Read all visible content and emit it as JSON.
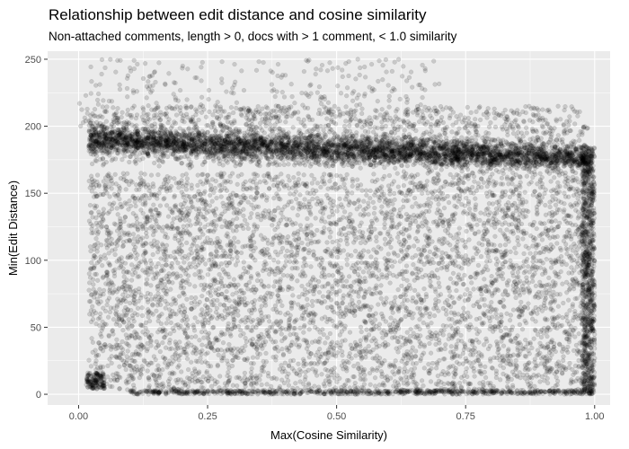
{
  "chart_data": {
    "type": "scatter",
    "title": "Relationship between edit distance and cosine similarity",
    "subtitle": "Non-attached comments, length > 0, docs with > 1 comment, < 1.0 similarity",
    "xlabel": "Max(Cosine Similarity)",
    "ylabel": "Min(Edit Distance)",
    "xlim": [
      -0.06,
      1.03
    ],
    "ylim": [
      -8,
      256
    ],
    "x_ticks": [
      0.0,
      0.25,
      0.5,
      0.75,
      1.0
    ],
    "x_tick_labels": [
      "0.00",
      "0.25",
      "0.50",
      "0.75",
      "1.00"
    ],
    "y_ticks": [
      0,
      50,
      100,
      150,
      200,
      250
    ],
    "y_tick_labels": [
      "0",
      "50",
      "100",
      "150",
      "200",
      "250"
    ],
    "grid": true,
    "panel_background": "#ebebeb",
    "point_color": "#000000",
    "point_alpha": 0.15,
    "point_regions": [
      {
        "name": "dense band",
        "x_range": [
          0.02,
          0.99
        ],
        "y_center_at_x0": 190,
        "y_center_at_x1": 176,
        "y_spread": 12,
        "count": 4200
      },
      {
        "name": "spread above band",
        "x_range": [
          0.02,
          0.99
        ],
        "y_range": [
          170,
          215
        ],
        "count": 1200
      },
      {
        "name": "sparse top",
        "x_range": [
          0.0,
          0.7
        ],
        "y_range": [
          200,
          250
        ],
        "count": 330
      },
      {
        "name": "uniform body",
        "x_range": [
          0.02,
          0.99
        ],
        "y_range": [
          3,
          165
        ],
        "count": 5200
      },
      {
        "name": "bottom row",
        "x_range": [
          0.1,
          1.0
        ],
        "y_range": [
          0,
          3
        ],
        "count": 800
      },
      {
        "name": "right edge column",
        "x_range": [
          0.975,
          1.0
        ],
        "y_range": [
          0,
          185
        ],
        "count": 900
      },
      {
        "name": "left cluster",
        "x_range": [
          0.015,
          0.05
        ],
        "y_range": [
          4,
          16
        ],
        "count": 140
      }
    ]
  }
}
